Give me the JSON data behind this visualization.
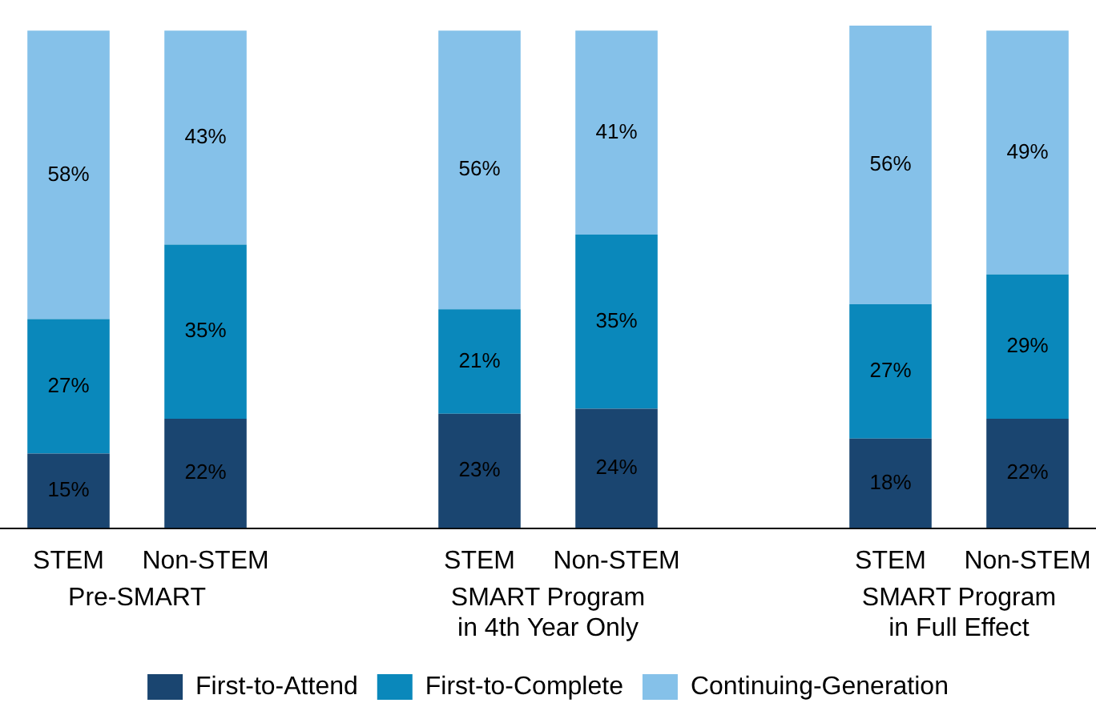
{
  "chart_data": {
    "type": "bar",
    "stacked": true,
    "categories": [
      "STEM",
      "Non-STEM",
      null,
      "STEM",
      "Non-STEM",
      null,
      "STEM",
      "Non-STEM"
    ],
    "series": [
      {
        "name": "First-to-Attend",
        "color": "#1a4570",
        "values": [
          15,
          22,
          null,
          23,
          24,
          null,
          18,
          22
        ],
        "value_labels": [
          "15%",
          "22%",
          null,
          "23%",
          "24%",
          null,
          "18%",
          "22%"
        ]
      },
      {
        "name": "First-to-Complete",
        "color": "#0a88bb",
        "values": [
          27,
          35,
          null,
          21,
          35,
          null,
          27,
          29
        ],
        "value_labels": [
          "27%",
          "35%",
          null,
          "21%",
          "35%",
          null,
          "27%",
          "29%"
        ]
      },
      {
        "name": "Continuing-Generation",
        "color": "#85c1e9",
        "values": [
          58,
          43,
          null,
          56,
          41,
          null,
          56,
          49
        ],
        "value_labels": [
          "58%",
          "43%",
          null,
          "56%",
          "41%",
          null,
          "56%",
          "49%"
        ]
      }
    ],
    "annotations": [
      "Pre-SMART",
      "SMART Program\nin 4th Year Only",
      "SMART Program\nin Full Effect"
    ],
    "ylim": [
      0,
      101
    ],
    "tick_labels": "x",
    "legend": "bottom"
  }
}
